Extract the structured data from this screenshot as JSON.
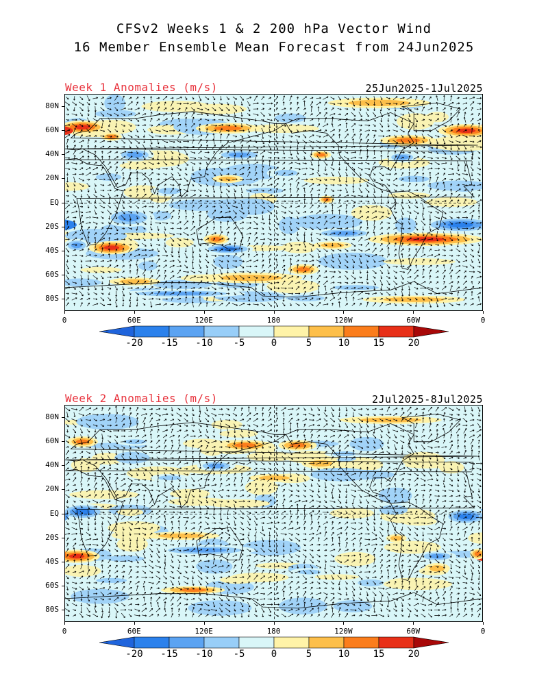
{
  "titles": {
    "line1": "CFSv2 Weeks 1 & 2 200 hPa Vector Wind",
    "line2": "16 Member Ensemble Mean Forecast from 24Jun2025"
  },
  "panels": [
    {
      "label": "Week 1 Anomalies (m/s)",
      "date_range": "25Jun2025-1Jul2025",
      "lat_ticks": [
        "80N",
        "60N",
        "40N",
        "20N",
        "EQ",
        "20S",
        "40S",
        "60S",
        "80S"
      ],
      "lon_ticks": [
        "0",
        "60E",
        "120E",
        "180",
        "120W",
        "60W",
        "0"
      ],
      "blobs": [
        {
          "lon": 15,
          "lat": 63,
          "rx": 18,
          "ry": 5,
          "v": 18
        },
        {
          "lon": 40,
          "lat": 55,
          "rx": 8,
          "ry": 3,
          "v": 10
        },
        {
          "lon": 345,
          "lat": 60,
          "rx": 22,
          "ry": 5,
          "v": 17
        },
        {
          "lon": 295,
          "lat": 52,
          "rx": 22,
          "ry": 4,
          "v": 14
        },
        {
          "lon": 140,
          "lat": 62,
          "rx": 25,
          "ry": 4,
          "v": 13
        },
        {
          "lon": 220,
          "lat": 40,
          "rx": 8,
          "ry": 3,
          "v": 10
        },
        {
          "lon": 140,
          "lat": 20,
          "rx": 12,
          "ry": 3,
          "v": 9
        },
        {
          "lon": 225,
          "lat": 3,
          "rx": 6,
          "ry": 3,
          "v": 10
        },
        {
          "lon": 40,
          "lat": -37,
          "rx": 18,
          "ry": 5,
          "v": 18
        },
        {
          "lon": 205,
          "lat": -55,
          "rx": 12,
          "ry": 4,
          "v": 13
        },
        {
          "lon": 310,
          "lat": -30,
          "rx": 45,
          "ry": 5,
          "v": 16
        },
        {
          "lon": 130,
          "lat": -30,
          "rx": 10,
          "ry": 4,
          "v": 10
        },
        {
          "lon": 160,
          "lat": -62,
          "rx": 40,
          "ry": 4,
          "v": 8
        },
        {
          "lon": 230,
          "lat": -35,
          "rx": 15,
          "ry": 3,
          "v": 9
        },
        {
          "lon": 300,
          "lat": -80,
          "rx": 40,
          "ry": 3,
          "v": 9
        },
        {
          "lon": 60,
          "lat": -65,
          "rx": 20,
          "ry": 3,
          "v": 9
        },
        {
          "lon": 270,
          "lat": 83,
          "rx": 40,
          "ry": 4,
          "v": 7
        },
        {
          "lon": 60,
          "lat": 40,
          "rx": 15,
          "ry": 5,
          "v": -12
        },
        {
          "lon": 150,
          "lat": 40,
          "rx": 20,
          "ry": 4,
          "v": -14
        },
        {
          "lon": 290,
          "lat": 38,
          "rx": 12,
          "ry": 4,
          "v": -10
        },
        {
          "lon": 190,
          "lat": 25,
          "rx": 15,
          "ry": 4,
          "v": -8
        },
        {
          "lon": 55,
          "lat": -12,
          "rx": 20,
          "ry": 7,
          "v": -13
        },
        {
          "lon": 140,
          "lat": -38,
          "rx": 20,
          "ry": 4,
          "v": -15
        },
        {
          "lon": 10,
          "lat": -35,
          "rx": 10,
          "ry": 5,
          "v": -12
        },
        {
          "lon": 340,
          "lat": -18,
          "rx": 30,
          "ry": 6,
          "v": -16
        },
        {
          "lon": 240,
          "lat": -25,
          "rx": 25,
          "ry": 4,
          "v": -12
        },
        {
          "lon": 90,
          "lat": 10,
          "rx": 15,
          "ry": 4,
          "v": -8
        },
        {
          "lon": 300,
          "lat": 20,
          "rx": 20,
          "ry": 4,
          "v": -8
        },
        {
          "lon": 100,
          "lat": -75,
          "rx": 50,
          "ry": 3,
          "v": -12
        },
        {
          "lon": 250,
          "lat": -70,
          "rx": 30,
          "ry": 3,
          "v": -8
        }
      ]
    },
    {
      "label": "Week 2 Anomalies (m/s)",
      "date_range": "2Jul2025-8Jul2025",
      "lat_ticks": [
        "80N",
        "60N",
        "40N",
        "20N",
        "EQ",
        "20S",
        "40S",
        "60S",
        "80S"
      ],
      "lon_ticks": [
        "0",
        "60E",
        "120E",
        "180",
        "120W",
        "60W",
        "0"
      ],
      "blobs": [
        {
          "lon": 10,
          "lat": -35,
          "rx": 18,
          "ry": 5,
          "v": 18
        },
        {
          "lon": 355,
          "lat": -33,
          "rx": 6,
          "ry": 4,
          "v": 14
        },
        {
          "lon": 110,
          "lat": -63,
          "rx": 25,
          "ry": 3,
          "v": 14
        },
        {
          "lon": 155,
          "lat": 57,
          "rx": 20,
          "ry": 4,
          "v": 12
        },
        {
          "lon": 200,
          "lat": 57,
          "rx": 15,
          "ry": 4,
          "v": 12
        },
        {
          "lon": 15,
          "lat": 60,
          "rx": 12,
          "ry": 4,
          "v": 12
        },
        {
          "lon": 320,
          "lat": -45,
          "rx": 10,
          "ry": 4,
          "v": 9
        },
        {
          "lon": 285,
          "lat": -20,
          "rx": 8,
          "ry": 3,
          "v": 8
        },
        {
          "lon": 220,
          "lat": 42,
          "rx": 15,
          "ry": 4,
          "v": 7
        },
        {
          "lon": 100,
          "lat": -18,
          "rx": 30,
          "ry": 3,
          "v": 8
        },
        {
          "lon": 180,
          "lat": 30,
          "rx": 20,
          "ry": 3,
          "v": 6
        },
        {
          "lon": 15,
          "lat": 2,
          "rx": 18,
          "ry": 6,
          "v": -15
        },
        {
          "lon": 345,
          "lat": -2,
          "rx": 18,
          "ry": 6,
          "v": -15
        },
        {
          "lon": 120,
          "lat": -30,
          "rx": 40,
          "ry": 4,
          "v": -10
        },
        {
          "lon": 130,
          "lat": 40,
          "rx": 15,
          "ry": 4,
          "v": -12
        },
        {
          "lon": 320,
          "lat": -35,
          "rx": 15,
          "ry": 4,
          "v": -12
        },
        {
          "lon": 90,
          "lat": 30,
          "rx": 15,
          "ry": 3,
          "v": -8
        },
        {
          "lon": 240,
          "lat": 50,
          "rx": 15,
          "ry": 3,
          "v": -9
        },
        {
          "lon": 60,
          "lat": 60,
          "rx": 15,
          "ry": 3,
          "v": -7
        },
        {
          "lon": 210,
          "lat": -48,
          "rx": 15,
          "ry": 3,
          "v": -7
        },
        {
          "lon": 40,
          "lat": -55,
          "rx": 20,
          "ry": 3,
          "v": -8
        },
        {
          "lon": 280,
          "lat": 78,
          "rx": 40,
          "ry": 3,
          "v": 5
        }
      ]
    }
  ],
  "colorbar": {
    "ticks": [
      "-20",
      "-15",
      "-10",
      "-5",
      "0",
      "5",
      "10",
      "15",
      "20"
    ],
    "colors": [
      "#1f64dc",
      "#2b81ec",
      "#5ba3f2",
      "#98cef8",
      "#d9f6f8",
      "#fff3a8",
      "#fdbf4a",
      "#fb7d1c",
      "#e83018",
      "#a80808"
    ]
  }
}
